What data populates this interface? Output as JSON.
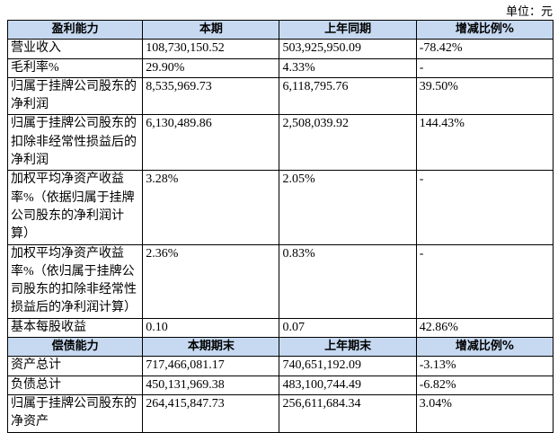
{
  "header": {
    "unit": "单位：元"
  },
  "table": {
    "sections": [
      {
        "header": [
          "盈利能力",
          "本期",
          "上年同期",
          "增减比例%"
        ],
        "rows": [
          [
            "营业收入",
            "108,730,150.52",
            "503,925,950.09",
            "-78.42%"
          ],
          [
            "毛利率%",
            "29.90%",
            "4.33%",
            "-"
          ],
          [
            "归属于挂牌公司股东的净利润",
            "8,535,969.73",
            "6,118,795.76",
            "39.50%"
          ],
          [
            "归属于挂牌公司股东的扣除非经常性损益后的净利润",
            "6,130,489.86",
            "2,508,039.92",
            "144.43%"
          ],
          [
            "加权平均净资产收益率%（依据归属于挂牌公司股东的净利润计算）",
            "3.28%",
            "2.05%",
            "-"
          ],
          [
            "加权平均净资产收益率%（依归属于挂牌公司股东的扣除非经常性损益后的净利润计算）",
            "2.36%",
            "0.83%",
            "-"
          ],
          [
            "基本每股收益",
            "0.10",
            "0.07",
            "42.86%"
          ]
        ]
      },
      {
        "header": [
          "偿债能力",
          "本期期末",
          "上年期末",
          "增减比例%"
        ],
        "rows": [
          [
            "资产总计",
            "717,466,081.17",
            "740,651,192.09",
            "-3.13%"
          ],
          [
            "负债总计",
            "450,131,969.38",
            "483,100,744.49",
            "-6.82%"
          ],
          [
            "归属于挂牌公司股东的净资产",
            "264,415,847.73",
            "256,611,684.34",
            "3.04%"
          ]
        ]
      }
    ]
  }
}
